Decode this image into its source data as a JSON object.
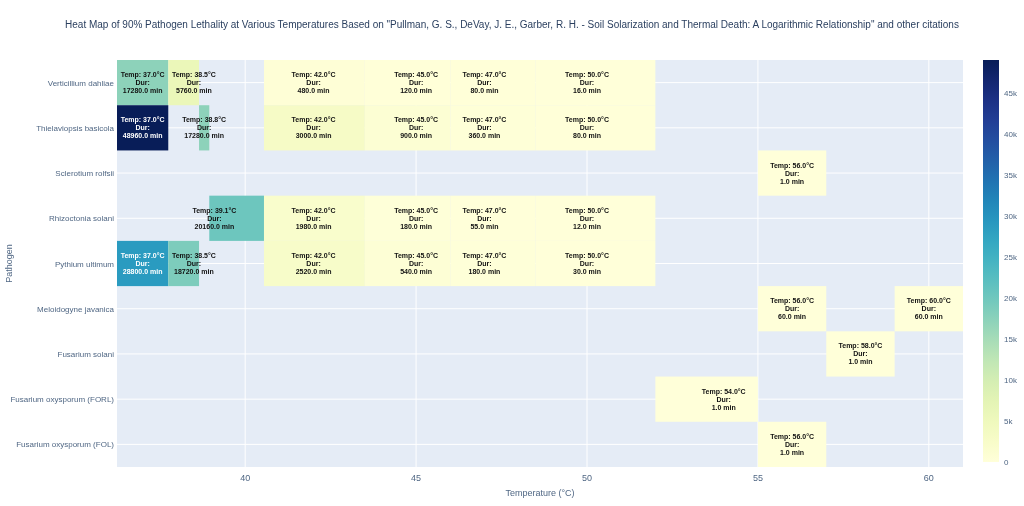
{
  "chart_data": {
    "type": "heatmap",
    "title": "Heat Map of 90% Pathogen Lethality at Various Temperatures Based on \"Pullman, G. S., DeVay, J. E., Garber, R. H. - Soil Solarization and Thermal Death: A Logarithmic Relationship\" and other citations",
    "xlabel": "Temperature (°C)",
    "ylabel": "Pathogen",
    "x": [
      37,
      38.5,
      38.8,
      39.1,
      42,
      45,
      47,
      50,
      54,
      56,
      58,
      60
    ],
    "xlim": [
      36.25,
      61
    ],
    "xticks": [
      40,
      45,
      50,
      55,
      60
    ],
    "y_categories": [
      "Verticillium dahliae",
      "Thielaviopsis basicola",
      "Sclerotium rolfsii",
      "Rhizoctonia solani",
      "Pythium ultimum",
      "Meloidogyne javanica",
      "Fusarium solani",
      "Fusarium oxysporum (FORL)",
      "Fusarium oxysporum (FOL)"
    ],
    "cells": [
      [
        17280,
        5760,
        null,
        null,
        480,
        120,
        80,
        16,
        null,
        null,
        null,
        null
      ],
      [
        48960,
        null,
        17280,
        null,
        3000,
        900,
        360,
        80,
        null,
        null,
        null,
        null
      ],
      [
        null,
        null,
        null,
        null,
        null,
        null,
        null,
        null,
        null,
        1,
        null,
        null
      ],
      [
        null,
        null,
        null,
        20160,
        1980,
        180,
        55,
        12,
        null,
        null,
        null,
        null
      ],
      [
        28800,
        18720,
        null,
        null,
        2520,
        540,
        180,
        30,
        null,
        null,
        null,
        null
      ],
      [
        null,
        null,
        null,
        null,
        null,
        null,
        null,
        null,
        null,
        60,
        null,
        60
      ],
      [
        null,
        null,
        null,
        null,
        null,
        null,
        null,
        null,
        null,
        null,
        1,
        null
      ],
      [
        null,
        null,
        null,
        null,
        null,
        null,
        null,
        null,
        1,
        null,
        null,
        null
      ],
      [
        null,
        null,
        null,
        null,
        null,
        null,
        null,
        null,
        null,
        1,
        null,
        null
      ]
    ],
    "cell_labels": [
      [
        "Temp: 37.0°C\nDur: 17280.0 min",
        "Temp: 38.5°C\nDur: 5760.0 min",
        null,
        null,
        "Temp: 42.0°C\nDur: 480.0 min",
        "Temp: 45.0°C\nDur: 120.0 min",
        "Temp: 47.0°C\nDur: 80.0 min",
        "Temp: 50.0°C\nDur: 16.0 min",
        null,
        null,
        null,
        null
      ],
      [
        "Temp: 37.0°C\nDur: 48960.0 min",
        null,
        "Temp: 38.8°C\nDur: 17280.0 min",
        null,
        "Temp: 42.0°C\nDur: 3000.0 min",
        "Temp: 45.0°C\nDur: 900.0 min",
        "Temp: 47.0°C\nDur: 360.0 min",
        "Temp: 50.0°C\nDur: 80.0 min",
        null,
        null,
        null,
        null
      ],
      [
        null,
        null,
        null,
        null,
        null,
        null,
        null,
        null,
        null,
        "Temp: 56.0°C\nDur: 1.0 min",
        null,
        null
      ],
      [
        null,
        null,
        null,
        "Temp: 39.1°C\nDur: 20160.0 min",
        "Temp: 42.0°C\nDur: 1980.0 min",
        "Temp: 45.0°C\nDur: 180.0 min",
        "Temp: 47.0°C\nDur: 55.0 min",
        "Temp: 50.0°C\nDur: 12.0 min",
        null,
        null,
        null,
        null
      ],
      [
        "Temp: 37.0°C\nDur: 28800.0 min",
        "Temp: 38.5°C\nDur: 18720.0 min",
        null,
        null,
        "Temp: 42.0°C\nDur: 2520.0 min",
        "Temp: 45.0°C\nDur: 540.0 min",
        "Temp: 47.0°C\nDur: 180.0 min",
        "Temp: 50.0°C\nDur: 30.0 min",
        null,
        null,
        null,
        null
      ],
      [
        null,
        null,
        null,
        null,
        null,
        null,
        null,
        null,
        null,
        "Temp: 56.0°C\nDur: 60.0 min",
        null,
        "Temp: 60.0°C\nDur: 60.0 min"
      ],
      [
        null,
        null,
        null,
        null,
        null,
        null,
        null,
        null,
        null,
        null,
        "Temp: 58.0°C\nDur: 1.0 min",
        null
      ],
      [
        null,
        null,
        null,
        null,
        null,
        null,
        null,
        null,
        "Temp: 54.0°C\nDur: 1.0 min",
        null,
        null,
        null
      ],
      [
        null,
        null,
        null,
        null,
        null,
        null,
        null,
        null,
        null,
        "Temp: 56.0°C\nDur: 1.0 min",
        null,
        null
      ]
    ],
    "clim": [
      0,
      48960
    ],
    "cticks": [
      {
        "value": 0,
        "label": "0"
      },
      {
        "value": 5000,
        "label": "5k"
      },
      {
        "value": 10000,
        "label": "10k"
      },
      {
        "value": 15000,
        "label": "15k"
      },
      {
        "value": 20000,
        "label": "20k"
      },
      {
        "value": 25000,
        "label": "25k"
      },
      {
        "value": 30000,
        "label": "30k"
      },
      {
        "value": 35000,
        "label": "35k"
      },
      {
        "value": 40000,
        "label": "40k"
      },
      {
        "value": 45000,
        "label": "45k"
      }
    ],
    "grid": true
  }
}
